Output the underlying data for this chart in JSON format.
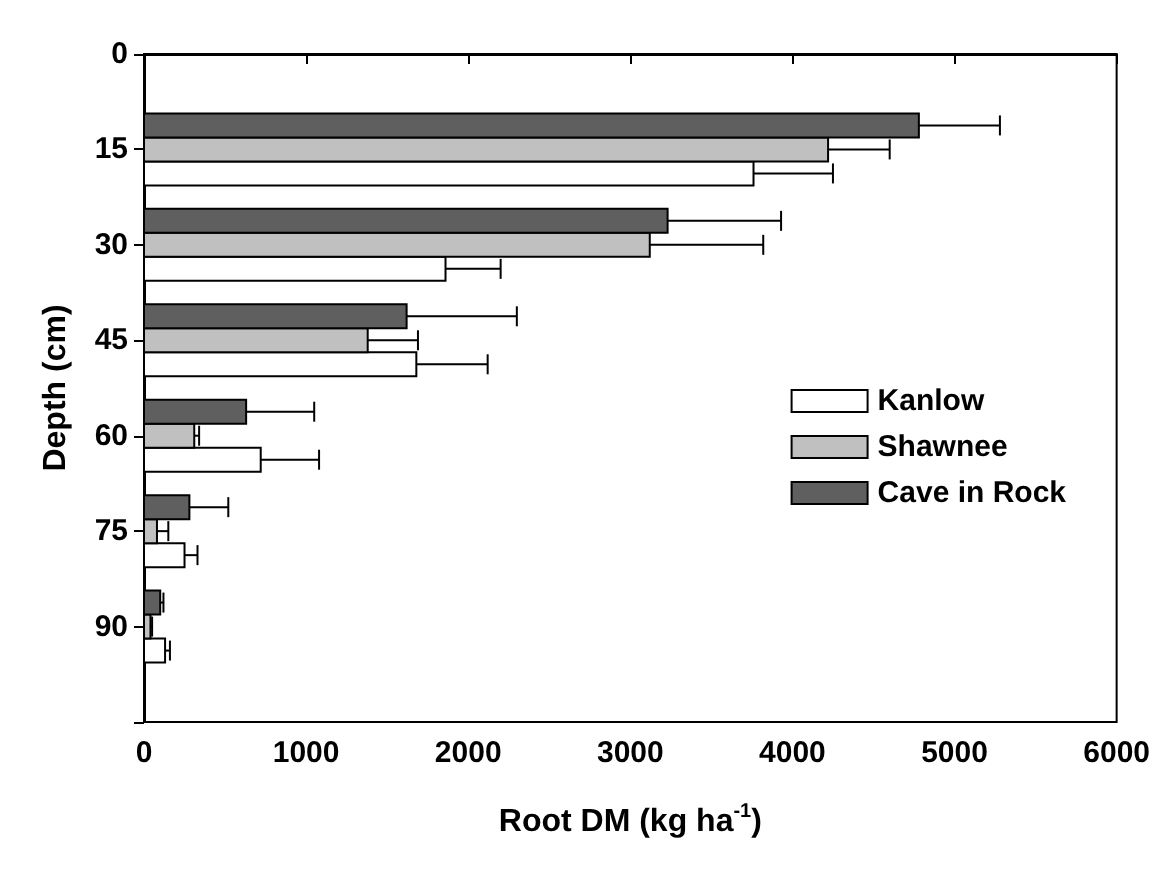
{
  "chart_data": {
    "type": "bar",
    "orientation": "horizontal",
    "xlabel": "Root DM (kg ha$^{-1}$)",
    "ylabel": "Depth (cm)",
    "x": [
      15,
      30,
      45,
      60,
      75,
      90
    ],
    "series": [
      {
        "name": "Kanlow",
        "color": "#ffffff",
        "values": [
          3760,
          1860,
          1680,
          720,
          250,
          130
        ],
        "errors": [
          [
            3760,
            4250
          ],
          [
            1860,
            2200
          ],
          [
            1680,
            2120
          ],
          [
            720,
            1080
          ],
          [
            250,
            330
          ],
          [
            130,
            160
          ]
        ]
      },
      {
        "name": "Shawnee",
        "color": "#c0c0c0",
        "values": [
          4220,
          3120,
          1380,
          310,
          80,
          40
        ],
        "errors": [
          [
            4220,
            4600
          ],
          [
            3120,
            3820
          ],
          [
            1380,
            1690
          ],
          [
            310,
            340
          ],
          [
            80,
            150
          ],
          [
            40,
            50
          ]
        ]
      },
      {
        "name": "Cave in Rock",
        "color": "#5f5f5f",
        "values": [
          4780,
          3230,
          1620,
          630,
          280,
          100
        ],
        "errors": [
          [
            4780,
            5280
          ],
          [
            3230,
            3930
          ],
          [
            1620,
            2300
          ],
          [
            630,
            1050
          ],
          [
            280,
            520
          ],
          [
            100,
            120
          ]
        ]
      }
    ],
    "xlim": [
      0,
      6000
    ],
    "xticks": [
      0,
      1000,
      2000,
      3000,
      4000,
      5000,
      6000
    ],
    "ylim": [
      105,
      0
    ],
    "yticks": [
      0,
      15,
      30,
      45,
      60,
      75,
      90,
      {
        "value": 105,
        "label": null
      }
    ],
    "grid": false,
    "legend": "right"
  }
}
